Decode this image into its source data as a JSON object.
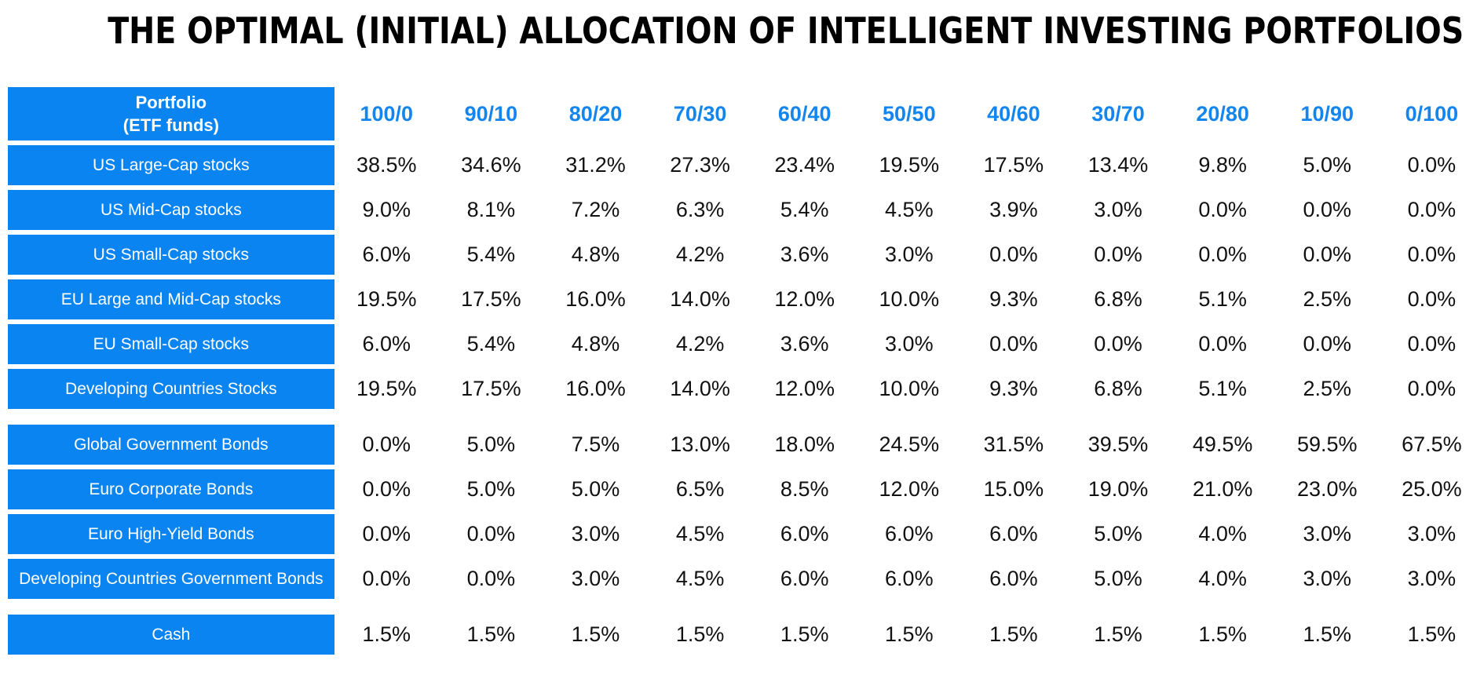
{
  "title": "THE OPTIMAL (INITIAL) ALLOCATION OF INTELLIGENT INVESTING PORTFOLIOS",
  "colors": {
    "label_bg": "#0a84f0",
    "header_text": "#1385ee"
  },
  "chart_data": {
    "type": "table",
    "title": "THE OPTIMAL (INITIAL) ALLOCATION OF INTELLIGENT INVESTING PORTFOLIOS",
    "row_header_line1": "Portfolio",
    "row_header_line2": "(ETF funds)",
    "columns": [
      "100/0",
      "90/10",
      "80/20",
      "70/30",
      "60/40",
      "50/50",
      "40/60",
      "30/70",
      "20/80",
      "10/90",
      "0/100"
    ],
    "groups": [
      [
        {
          "label": "US Large-Cap stocks",
          "values": [
            "38.5%",
            "34.6%",
            "31.2%",
            "27.3%",
            "23.4%",
            "19.5%",
            "17.5%",
            "13.4%",
            "9.8%",
            "5.0%",
            "0.0%"
          ]
        },
        {
          "label": "US Mid-Cap stocks",
          "values": [
            "9.0%",
            "8.1%",
            "7.2%",
            "6.3%",
            "5.4%",
            "4.5%",
            "3.9%",
            "3.0%",
            "0.0%",
            "0.0%",
            "0.0%"
          ]
        },
        {
          "label": "US Small-Cap stocks",
          "values": [
            "6.0%",
            "5.4%",
            "4.8%",
            "4.2%",
            "3.6%",
            "3.0%",
            "0.0%",
            "0.0%",
            "0.0%",
            "0.0%",
            "0.0%"
          ]
        },
        {
          "label": "EU Large and Mid-Cap stocks",
          "values": [
            "19.5%",
            "17.5%",
            "16.0%",
            "14.0%",
            "12.0%",
            "10.0%",
            "9.3%",
            "6.8%",
            "5.1%",
            "2.5%",
            "0.0%"
          ]
        },
        {
          "label": "EU Small-Cap stocks",
          "values": [
            "6.0%",
            "5.4%",
            "4.8%",
            "4.2%",
            "3.6%",
            "3.0%",
            "0.0%",
            "0.0%",
            "0.0%",
            "0.0%",
            "0.0%"
          ]
        },
        {
          "label": "Developing Countries Stocks",
          "values": [
            "19.5%",
            "17.5%",
            "16.0%",
            "14.0%",
            "12.0%",
            "10.0%",
            "9.3%",
            "6.8%",
            "5.1%",
            "2.5%",
            "0.0%"
          ]
        }
      ],
      [
        {
          "label": "Global Government Bonds",
          "values": [
            "0.0%",
            "5.0%",
            "7.5%",
            "13.0%",
            "18.0%",
            "24.5%",
            "31.5%",
            "39.5%",
            "49.5%",
            "59.5%",
            "67.5%"
          ]
        },
        {
          "label": "Euro Corporate Bonds",
          "values": [
            "0.0%",
            "5.0%",
            "5.0%",
            "6.5%",
            "8.5%",
            "12.0%",
            "15.0%",
            "19.0%",
            "21.0%",
            "23.0%",
            "25.0%"
          ]
        },
        {
          "label": "Euro High-Yield Bonds",
          "values": [
            "0.0%",
            "0.0%",
            "3.0%",
            "4.5%",
            "6.0%",
            "6.0%",
            "6.0%",
            "5.0%",
            "4.0%",
            "3.0%",
            "3.0%"
          ]
        },
        {
          "label": "Developing Countries Government Bonds",
          "values": [
            "0.0%",
            "0.0%",
            "3.0%",
            "4.5%",
            "6.0%",
            "6.0%",
            "6.0%",
            "5.0%",
            "4.0%",
            "3.0%",
            "3.0%"
          ]
        }
      ],
      [
        {
          "label": "Cash",
          "values": [
            "1.5%",
            "1.5%",
            "1.5%",
            "1.5%",
            "1.5%",
            "1.5%",
            "1.5%",
            "1.5%",
            "1.5%",
            "1.5%",
            "1.5%"
          ]
        }
      ]
    ]
  }
}
